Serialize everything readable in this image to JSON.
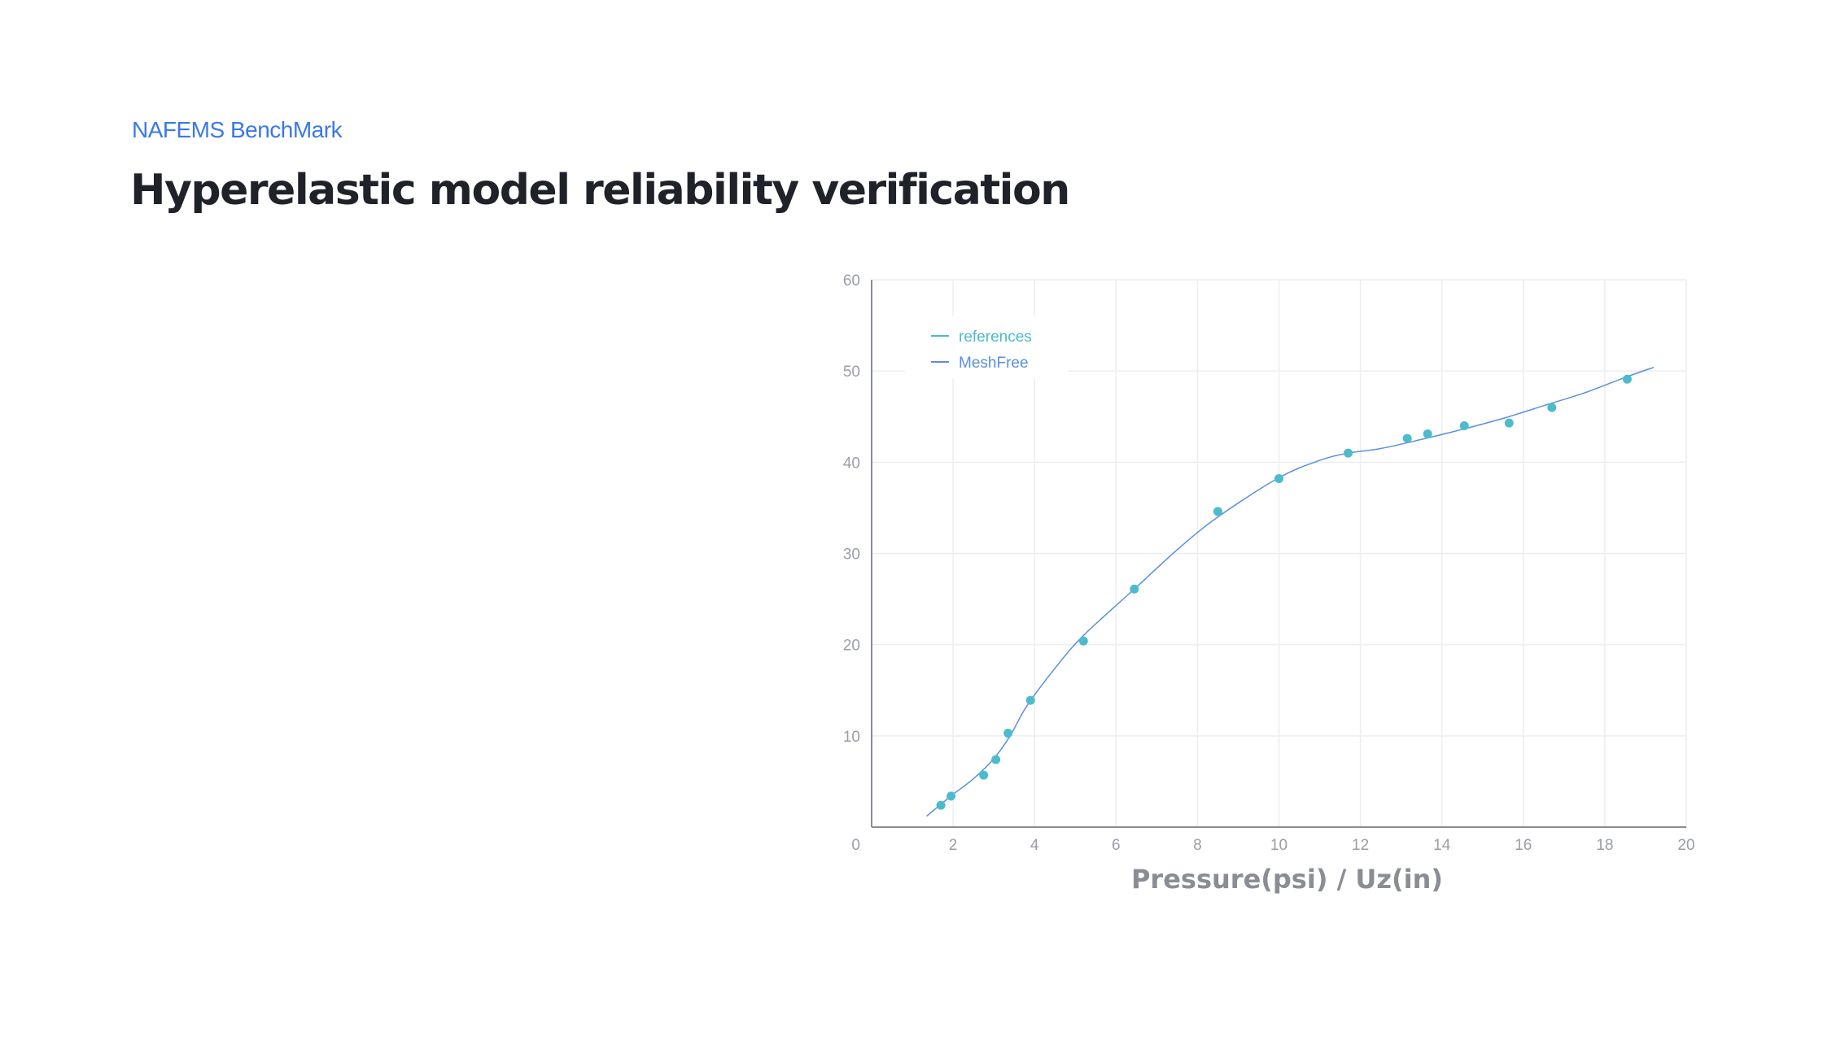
{
  "header": {
    "eyebrow": "NAFEMS BenchMark",
    "title": "Hyperelastic model reliability verification"
  },
  "colors": {
    "eyebrow": "#3b78e7",
    "title": "#1f2329",
    "references": "#4cbccc",
    "meshfree": "#5a8fe0",
    "grid": "#eceef1",
    "axis": "#888c94"
  },
  "chart_data": {
    "type": "scatter",
    "title": "",
    "xlabel": "Pressure(psi) / Uz(in)",
    "ylabel": "",
    "xlim": [
      0,
      20
    ],
    "ylim": [
      0,
      60
    ],
    "x_ticks": [
      2,
      4,
      6,
      8,
      10,
      12,
      14,
      16,
      18,
      20
    ],
    "y_ticks": [
      10,
      20,
      30,
      40,
      50,
      60
    ],
    "origin_label": "0",
    "grid": true,
    "legend_position": "top-left",
    "series": [
      {
        "name": "references",
        "type": "scatter",
        "color": "#4cbccc",
        "x": [
          1.7,
          1.95,
          2.75,
          3.05,
          3.35,
          3.9,
          5.2,
          6.45,
          8.5,
          10.0,
          11.7,
          13.15,
          13.65,
          14.55,
          15.65,
          16.7,
          18.55
        ],
        "y": [
          2.4,
          3.4,
          5.7,
          7.4,
          10.3,
          13.9,
          20.4,
          26.1,
          34.6,
          38.2,
          41.0,
          42.6,
          43.1,
          44.0,
          44.3,
          46.0,
          49.1
        ]
      },
      {
        "name": "MeshFree",
        "type": "line",
        "color": "#5a8fe0",
        "x": [
          1.35,
          1.7,
          2.0,
          2.5,
          3.0,
          3.4,
          3.8,
          4.5,
          5.2,
          6.5,
          7.5,
          8.5,
          10.0,
          11.0,
          11.7,
          12.5,
          13.5,
          14.5,
          15.5,
          16.5,
          17.5,
          18.5,
          19.2
        ],
        "y": [
          1.2,
          2.5,
          3.6,
          5.3,
          7.5,
          10.0,
          13.2,
          17.4,
          21.0,
          26.3,
          30.4,
          34.0,
          38.3,
          40.2,
          41.0,
          41.5,
          42.5,
          43.6,
          44.8,
          46.2,
          47.6,
          49.3,
          50.4
        ]
      }
    ]
  }
}
